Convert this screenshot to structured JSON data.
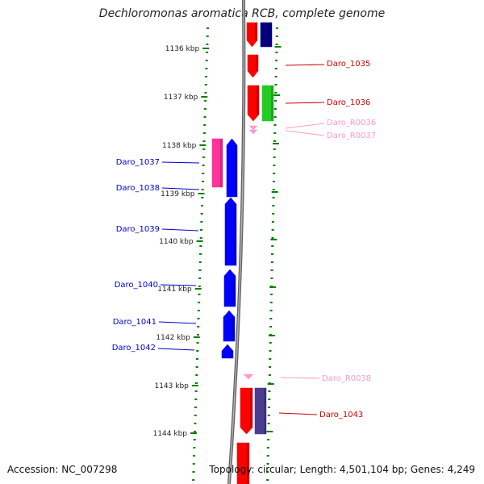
{
  "title": "Dechloromonas aromatica RCB, complete genome",
  "footer": {
    "accession": "Accession: NC_007298",
    "topology": "Topology: circular; Length: 4,501,104 bp; Genes: 4,249"
  },
  "colors": {
    "backbone": "#808080",
    "tick": "#008000",
    "cds_red": "#ff0000",
    "cds_blue": "#0000ff",
    "cds_navy": "#000080",
    "cds_green": "#22cc22",
    "cds_pink": "#ff3399",
    "cds_slate": "#4b3d8f",
    "rna": "#ff99cc",
    "label_red": "#cc0000",
    "label_blue": "#0000cc",
    "label_pink": "#ff99cc"
  },
  "position_labels": [
    {
      "text": "1136 kbp"
    },
    {
      "text": "1137 kbp"
    },
    {
      "text": "1138 kbp"
    },
    {
      "text": "1139 kbp"
    },
    {
      "text": "1140 kbp"
    },
    {
      "text": "1141 kbp"
    },
    {
      "text": "1142 kbp"
    },
    {
      "text": "1143 kbp"
    },
    {
      "text": "1144 kbp"
    }
  ],
  "gene_labels": [
    {
      "text": "Daro_1035",
      "color": "label_red"
    },
    {
      "text": "Daro_1036",
      "color": "label_red"
    },
    {
      "text": "Daro_R0036",
      "color": "label_pink"
    },
    {
      "text": "Daro_R0037",
      "color": "label_pink"
    },
    {
      "text": "Daro_1037",
      "color": "label_blue"
    },
    {
      "text": "Daro_1038",
      "color": "label_blue"
    },
    {
      "text": "Daro_1039",
      "color": "label_blue"
    },
    {
      "text": "Daro_1040",
      "color": "label_blue"
    },
    {
      "text": "Daro_1041",
      "color": "label_blue"
    },
    {
      "text": "Daro_1042",
      "color": "label_blue"
    },
    {
      "text": "Daro_R0038",
      "color": "label_pink"
    },
    {
      "text": "Daro_1043",
      "color": "label_red"
    }
  ],
  "features": [
    {
      "name": "top-red-cds",
      "color": "cds_red",
      "arrow": "down"
    },
    {
      "name": "top-navy-cds",
      "color": "cds_navy",
      "arrow": "none"
    },
    {
      "name": "daro-1035-cds",
      "color": "cds_red",
      "arrow": "down"
    },
    {
      "name": "daro-1036-cds",
      "color": "cds_red",
      "arrow": "down"
    },
    {
      "name": "daro-1036-green-cds",
      "color": "cds_green",
      "arrow": "none"
    },
    {
      "name": "daro-r0036-rna",
      "color": "rna",
      "arrow": "down"
    },
    {
      "name": "daro-r0037-rna",
      "color": "rna",
      "arrow": "down"
    },
    {
      "name": "daro-1037-cds",
      "color": "cds_pink",
      "arrow": "none"
    },
    {
      "name": "daro-1038-cds",
      "color": "cds_blue",
      "arrow": "up"
    },
    {
      "name": "daro-1039-cds",
      "color": "cds_blue",
      "arrow": "up"
    },
    {
      "name": "daro-1040-cds",
      "color": "cds_blue",
      "arrow": "up"
    },
    {
      "name": "daro-1041-cds",
      "color": "cds_blue",
      "arrow": "up"
    },
    {
      "name": "daro-1042-cds",
      "color": "cds_blue",
      "arrow": "up"
    },
    {
      "name": "daro-r0038-rna",
      "color": "rna",
      "arrow": "down"
    },
    {
      "name": "daro-1043-cds",
      "color": "cds_red",
      "arrow": "down"
    },
    {
      "name": "daro-1043-slate-cds",
      "color": "cds_slate",
      "arrow": "none"
    },
    {
      "name": "bottom-red-cds",
      "color": "cds_red",
      "arrow": "none"
    }
  ]
}
